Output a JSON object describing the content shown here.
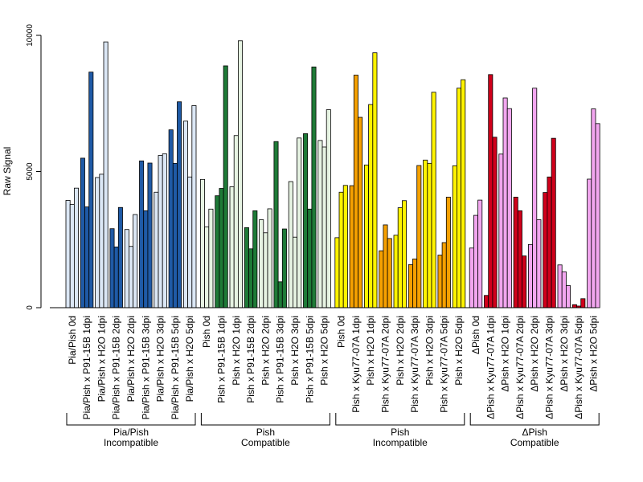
{
  "chart_data": {
    "type": "bar",
    "title": "",
    "xlabel": "",
    "ylabel": "Raw Signal",
    "ylim": [
      0,
      10000
    ],
    "yticks": [
      0,
      5000,
      10000
    ],
    "grid": false,
    "categories": [
      "Pia/Pish 0d",
      "Pia/Pish x P91-15B 1dpi",
      "Pia/Pish x H2O 1dpi",
      "Pia/Pish x P91-15B 2dpi",
      "Pia/Pish x H2O 2dpi",
      "Pia/Pish x P91-15B 3dpi",
      "Pia/Pish x H2O 3dpi",
      "Pia/Pish x P91-15B 5dpi",
      "Pia/Pish x H2O 5dpi",
      "Pish 0d",
      "Pish x P91-15B 1dpi",
      "Pish x H2O 1dpi",
      "Pish x P91-15B 2dpi",
      "Pish x H2O 2dpi",
      "Pish x P91-15B 3dpi",
      "Pish x H2O 3dpi",
      "Pish x P91-15B 5dpi",
      "Pish x H2O 5dpi",
      "Pish 0d",
      "Pish x Kyu77-07A 1dpi",
      "Pish x H2O 1dpi",
      "Pish x Kyu77-07A 2dpi",
      "Pish x H2O 2dpi",
      "Pish x Kyu77-07A 3dpi",
      "Pish x H2O 3dpi",
      "Pish x Kyu77-07A 5dpi",
      "Pish x H2O 5dpi",
      "ΔPish 0d",
      "ΔPish x Kyu77-07A 1dpi",
      "ΔPish x H2O 1dpi",
      "ΔPish x Kyu77-07A 2dpi",
      "ΔPish x H2O 2dpi",
      "ΔPish x Kyu77-07A 3dpi",
      "ΔPish x H2O 3dpi",
      "ΔPish x Kyu77-07A 5dpi",
      "ΔPish x H2O 5dpi"
    ],
    "values": [
      [
        3940,
        3790,
        4390
      ],
      [
        5490,
        3700,
        8650
      ],
      [
        4780,
        4900,
        9760
      ],
      [
        2900,
        2230,
        3680
      ],
      [
        2870,
        2250,
        3420
      ],
      [
        5390,
        3560,
        5310
      ],
      [
        4240,
        5590,
        5650
      ],
      [
        6530,
        5300,
        7560
      ],
      [
        6850,
        4800,
        7420
      ],
      [
        4710,
        2970,
        3620
      ],
      [
        4110,
        4380,
        8880
      ],
      [
        4440,
        6320,
        9800
      ],
      [
        2940,
        2160,
        3560
      ],
      [
        3230,
        2750,
        3630
      ],
      [
        6100,
        950,
        2890
      ],
      [
        4630,
        2590,
        6230
      ],
      [
        6390,
        3620,
        8840
      ],
      [
        6140,
        5900,
        7270
      ],
      [
        2570,
        4240,
        4490
      ],
      [
        4480,
        8540,
        6990
      ],
      [
        5240,
        7460,
        9360
      ],
      [
        2090,
        3040,
        2540
      ],
      [
        2660,
        3670,
        3930
      ],
      [
        1580,
        1790,
        5220
      ],
      [
        5420,
        5300,
        7910
      ],
      [
        1930,
        2390,
        4060
      ],
      [
        5210,
        8060,
        8370
      ],
      [
        2190,
        3390,
        3950
      ],
      [
        450,
        8560,
        6260
      ],
      [
        5640,
        7700,
        7310
      ],
      [
        4060,
        3560,
        1900
      ],
      [
        2320,
        8060,
        3230
      ],
      [
        4230,
        4800,
        6220
      ],
      [
        1570,
        1320,
        810
      ],
      [
        110,
        60,
        330
      ],
      [
        4720,
        7300,
        6760
      ]
    ],
    "colors": [
      "#dbe7f5",
      "#1f5aa6",
      "#dbe7f5",
      "#1f5aa6",
      "#dbe7f5",
      "#1f5aa6",
      "#dbe7f5",
      "#1f5aa6",
      "#dbe7f5",
      "#e6f3e2",
      "#1e7a37",
      "#e6f3e2",
      "#1e7a37",
      "#e6f3e2",
      "#1e7a37",
      "#e6f3e2",
      "#1e7a37",
      "#e6f3e2",
      "#fff300",
      "#f5a000",
      "#fff300",
      "#f5a000",
      "#fff300",
      "#f5a000",
      "#fff300",
      "#f5a000",
      "#fff300",
      "#f2a6ef",
      "#d0001b",
      "#f2a6ef",
      "#d0001b",
      "#f2a6ef",
      "#d0001b",
      "#f2a6ef",
      "#d0001b",
      "#f2a6ef"
    ],
    "groups": [
      {
        "label_line1": "Pia/Pish",
        "label_line2": "Incompatible",
        "start": 0,
        "end": 8
      },
      {
        "label_line1": "Pish",
        "label_line2": "Compatible",
        "start": 9,
        "end": 17
      },
      {
        "label_line1": "Pish",
        "label_line2": "Incompatible",
        "start": 18,
        "end": 26
      },
      {
        "label_line1": "ΔPish",
        "label_line2": "Compatible",
        "start": 27,
        "end": 35
      }
    ]
  }
}
